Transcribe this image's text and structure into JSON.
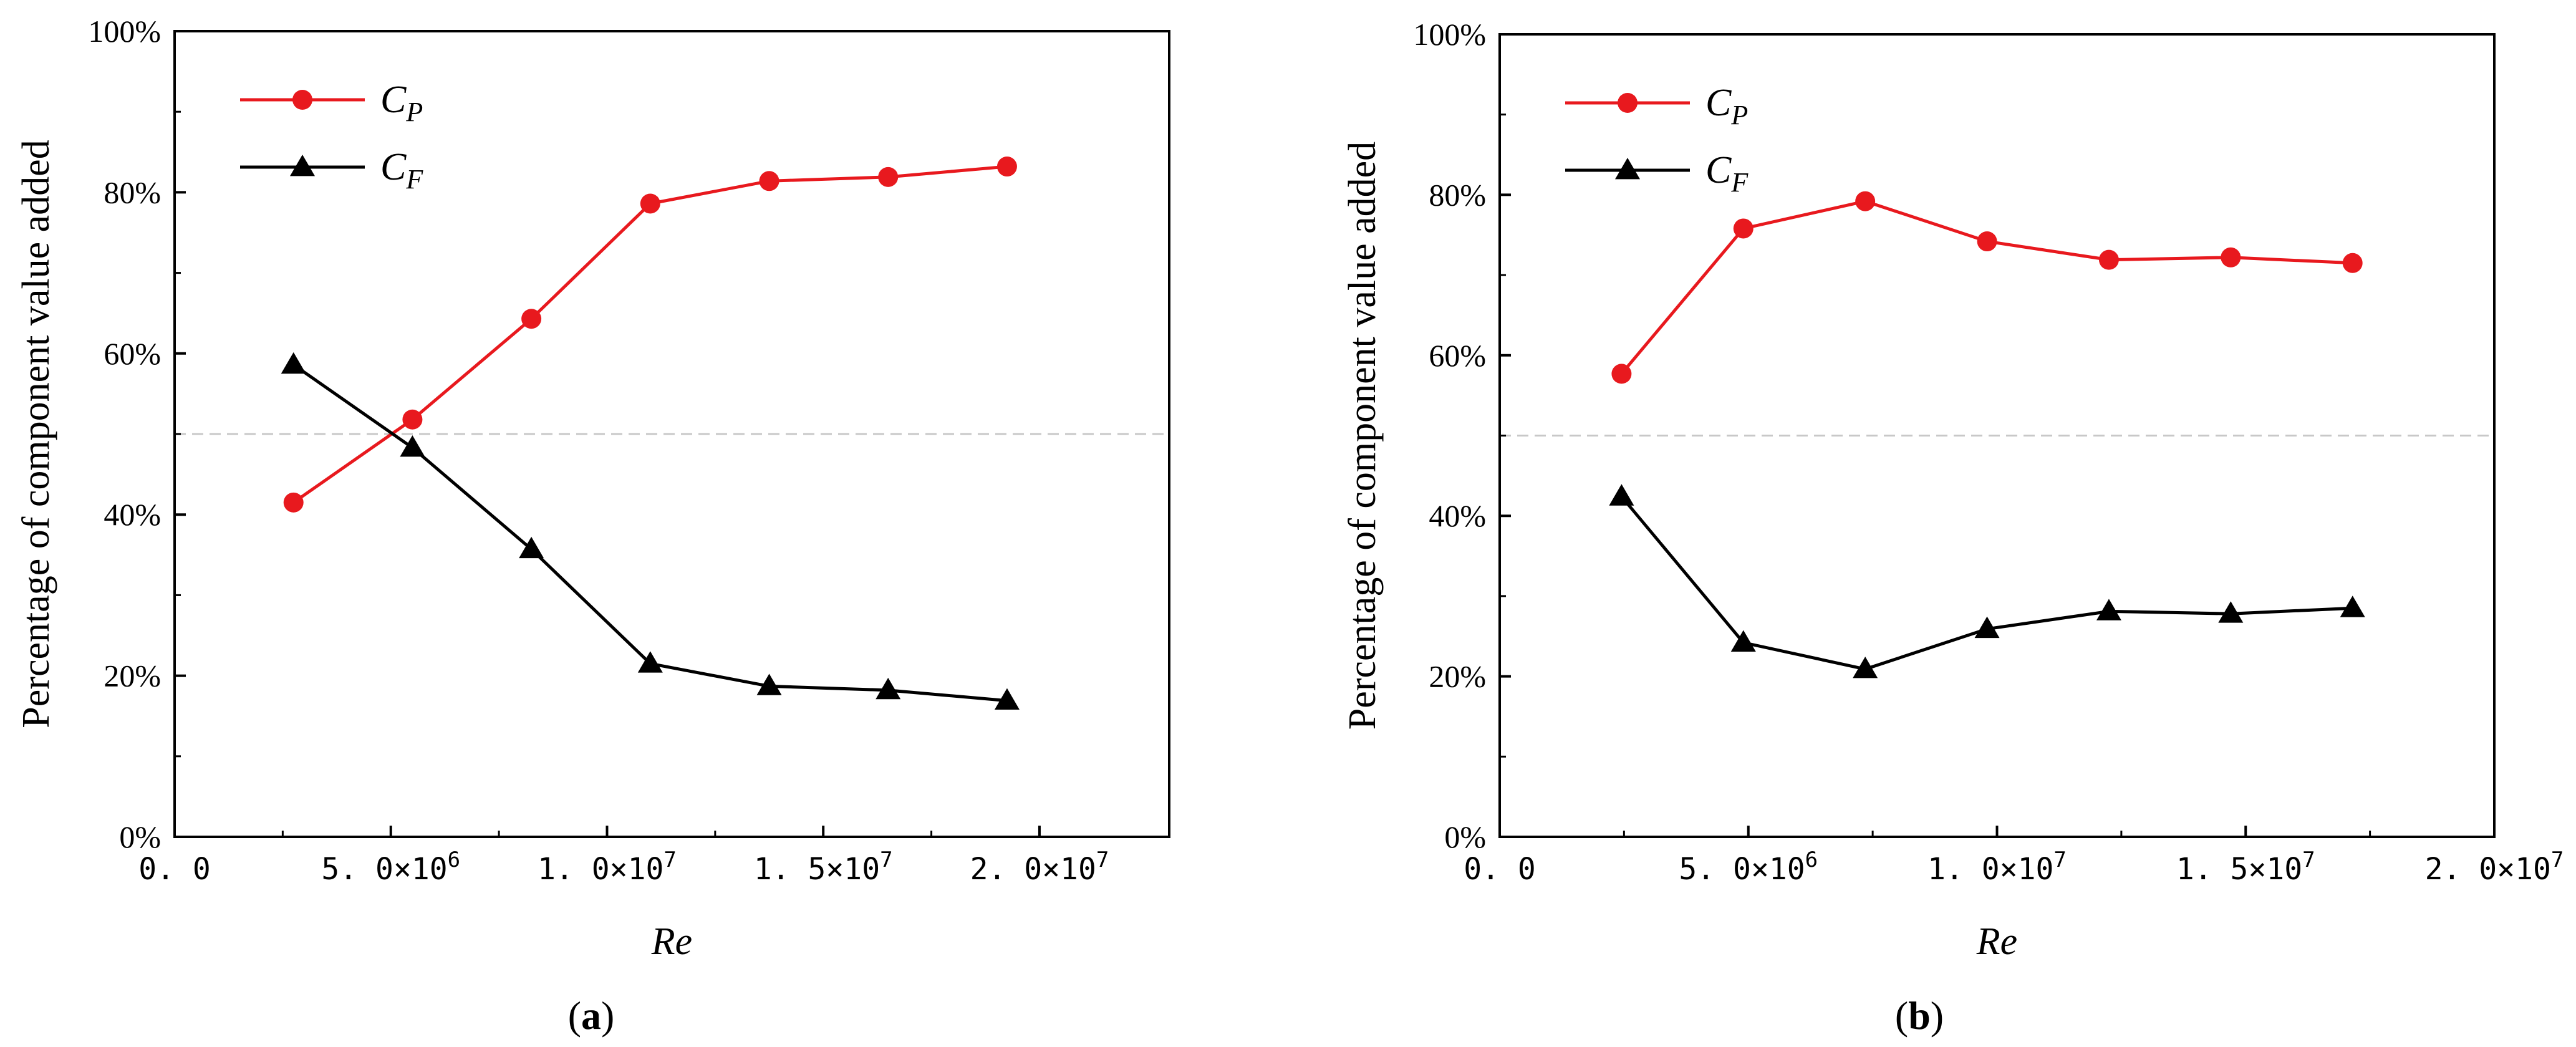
{
  "figure": {
    "panel_labels": [
      "a",
      "b"
    ],
    "colors": {
      "cp": "#e8191e",
      "cf": "#000000",
      "reference": "#c8c8c8"
    }
  },
  "chart_data": [
    {
      "type": "line",
      "panel": "a",
      "title": "",
      "xlabel": "Re",
      "ylabel": "Percentage of component value added",
      "xlim": [
        0,
        23000000
      ],
      "ylim": [
        0,
        100
      ],
      "x_ticks": [
        0,
        5000000,
        10000000,
        15000000,
        20000000
      ],
      "x_tick_labels": [
        {
          "mant": "0. 0",
          "exp": ""
        },
        {
          "mant": "5. 0×10",
          "exp": "6"
        },
        {
          "mant": "1. 0×10",
          "exp": "7"
        },
        {
          "mant": "1. 5×10",
          "exp": "7"
        },
        {
          "mant": "2. 0×10",
          "exp": "7"
        }
      ],
      "y_ticks": [
        0,
        20,
        40,
        60,
        80,
        100
      ],
      "y_tick_labels": [
        "0%",
        "20%",
        "40%",
        "60%",
        "80%",
        "100%"
      ],
      "reference_line": 50,
      "legend_position": "top-left",
      "series": [
        {
          "name": "C_P",
          "label_base": "C",
          "label_sub": "P",
          "marker": "circle",
          "color": "#e8191e",
          "x": [
            2750000,
            5500000,
            8250000,
            11000000,
            13750000,
            16500000,
            19250000
          ],
          "values": [
            41.5,
            51.8,
            64.3,
            78.6,
            81.4,
            81.9,
            83.2
          ]
        },
        {
          "name": "C_F",
          "label_base": "C",
          "label_sub": "F",
          "marker": "triangle",
          "color": "#000000",
          "x": [
            2750000,
            5500000,
            8250000,
            11000000,
            13750000,
            16500000,
            19250000
          ],
          "values": [
            58.6,
            48.3,
            35.7,
            21.5,
            18.7,
            18.2,
            16.9
          ]
        }
      ]
    },
    {
      "type": "line",
      "panel": "b",
      "title": "",
      "xlabel": "Re",
      "ylabel": "Percentage of component value added",
      "xlim": [
        0,
        20000000
      ],
      "ylim": [
        0,
        100
      ],
      "x_ticks": [
        0,
        5000000,
        10000000,
        15000000,
        20000000
      ],
      "x_tick_labels": [
        {
          "mant": "0. 0",
          "exp": ""
        },
        {
          "mant": "5. 0×10",
          "exp": "6"
        },
        {
          "mant": "1. 0×10",
          "exp": "7"
        },
        {
          "mant": "1. 5×10",
          "exp": "7"
        },
        {
          "mant": "2. 0×10",
          "exp": "7"
        }
      ],
      "y_ticks": [
        0,
        20,
        40,
        60,
        80,
        100
      ],
      "y_tick_labels": [
        "0%",
        "20%",
        "40%",
        "60%",
        "80%",
        "100%"
      ],
      "reference_line": 50,
      "legend_position": "top-left",
      "series": [
        {
          "name": "C_P",
          "label_base": "C",
          "label_sub": "P",
          "marker": "circle",
          "color": "#e8191e",
          "x": [
            2450000,
            4900000,
            7350000,
            9800000,
            12250000,
            14700000,
            17150000
          ],
          "values": [
            57.7,
            75.8,
            79.2,
            74.2,
            71.9,
            72.2,
            71.5
          ]
        },
        {
          "name": "C_F",
          "label_base": "C",
          "label_sub": "F",
          "marker": "triangle",
          "color": "#000000",
          "x": [
            2450000,
            4900000,
            7350000,
            9800000,
            12250000,
            14700000,
            17150000
          ],
          "values": [
            42.4,
            24.2,
            20.9,
            25.9,
            28.1,
            27.8,
            28.5
          ]
        }
      ]
    }
  ]
}
